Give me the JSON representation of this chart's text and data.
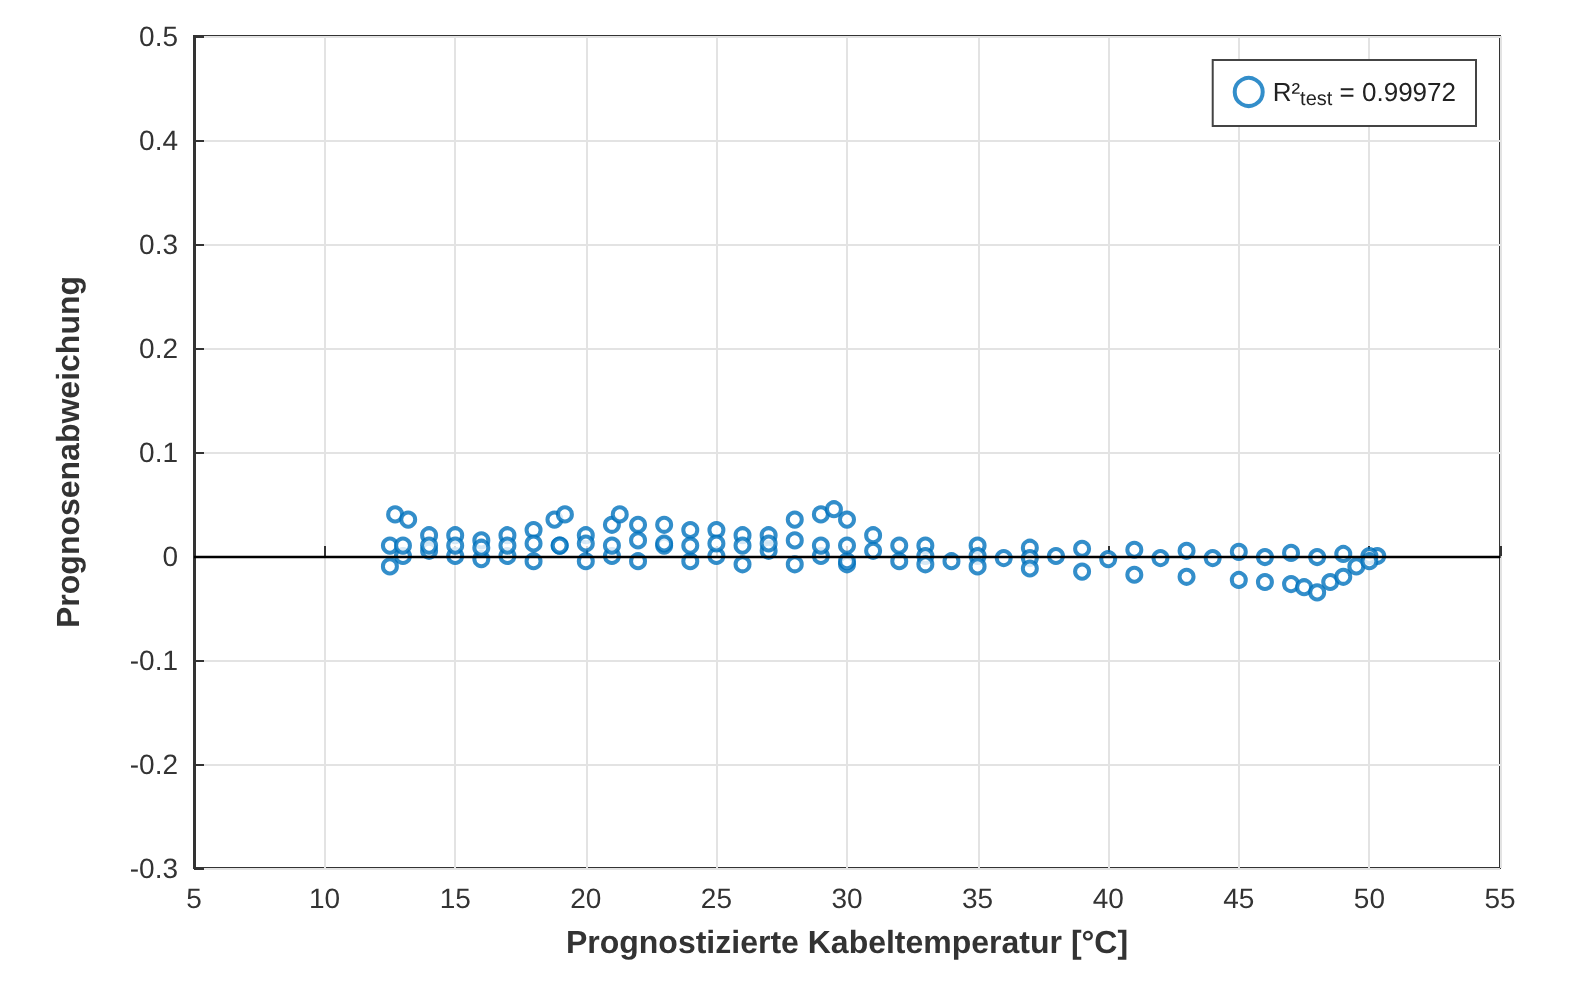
{
  "chart_data": {
    "type": "scatter",
    "xlabel": "Prognostizierte Kabeltemperatur [°C]",
    "ylabel": "Prognosenabweichung",
    "xlim": [
      5,
      55
    ],
    "xticks": [
      5,
      10,
      15,
      20,
      25,
      30,
      35,
      40,
      45,
      50,
      55
    ],
    "ylim": [
      -0.3,
      0.5
    ],
    "yticks": [
      -0.3,
      -0.2,
      -0.1,
      0,
      0.1,
      0.2,
      0.3,
      0.4,
      0.5
    ],
    "grid": true,
    "legend": "top right",
    "marker": "circle",
    "ref_lines": [
      {
        "axis": "y",
        "value": 0,
        "color": "#000000"
      }
    ],
    "series": [
      {
        "name": "R²$_{test}$ = 0.99972",
        "color": "#0072bd",
        "x": [
          12.5,
          12.7,
          13.2,
          14,
          15,
          16,
          17,
          18,
          18.8,
          19.2,
          20,
          21,
          21.3,
          22,
          23,
          24,
          25,
          26,
          27,
          28,
          29,
          29.5,
          30,
          31,
          32,
          33,
          35,
          37,
          39,
          41,
          43,
          45,
          47,
          49,
          50.3,
          12.5,
          13,
          14,
          15,
          16,
          17,
          18,
          19,
          20,
          21,
          22,
          23,
          24,
          25,
          26,
          27,
          28,
          29,
          30,
          31,
          32,
          33,
          34,
          35,
          36,
          37,
          38,
          40,
          42,
          44,
          46,
          48,
          50,
          30,
          33,
          35,
          37,
          39,
          41,
          43,
          45,
          46,
          47,
          47.5,
          48,
          48.5,
          49,
          49.5,
          50,
          13,
          14,
          15,
          16,
          17,
          18,
          19,
          20,
          21,
          22,
          23,
          24,
          25,
          26,
          27,
          28,
          29,
          30
        ],
        "values": [
          0.01,
          0.04,
          0.035,
          0.02,
          0.02,
          0.015,
          0.02,
          0.025,
          0.035,
          0.04,
          0.02,
          0.03,
          0.04,
          0.03,
          0.03,
          0.025,
          0.025,
          0.02,
          0.02,
          0.035,
          0.04,
          0.045,
          0.035,
          0.02,
          0.01,
          0.01,
          0.01,
          0.008,
          0.007,
          0.006,
          0.005,
          0.004,
          0.003,
          0.002,
          0,
          -0.01,
          0,
          0.005,
          0,
          -0.003,
          0,
          -0.005,
          0.01,
          -0.005,
          0,
          -0.005,
          0.01,
          -0.005,
          0,
          -0.008,
          0.005,
          -0.008,
          0,
          -0.008,
          0.005,
          -0.005,
          0,
          -0.005,
          0,
          -0.002,
          -0.002,
          0,
          -0.003,
          -0.002,
          -0.002,
          -0.001,
          -0.001,
          0,
          -0.005,
          -0.008,
          -0.01,
          -0.012,
          -0.015,
          -0.018,
          -0.02,
          -0.023,
          -0.025,
          -0.027,
          -0.03,
          -0.035,
          -0.025,
          -0.02,
          -0.01,
          -0.005,
          0.01,
          0.01,
          0.01,
          0.008,
          0.01,
          0.012,
          0.01,
          0.012,
          0.01,
          0.015,
          0.012,
          0.01,
          0.012,
          0.01,
          0.012,
          0.015,
          0.01,
          0.01
        ]
      }
    ]
  }
}
